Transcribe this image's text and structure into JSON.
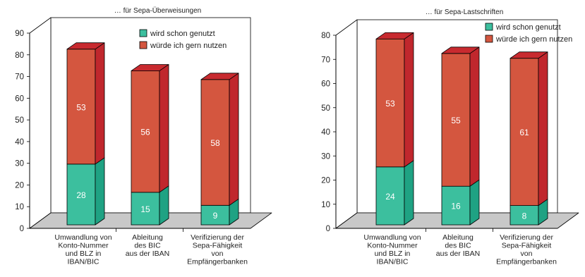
{
  "colors": {
    "used": "#3cbf9e",
    "used_side": "#1fa283",
    "used_top": "#6fdac0",
    "wish": "#d4563f",
    "wish_side": "#c0272d",
    "wish_top": "#c82a2f",
    "floor": "#c8c8c8",
    "axis": "#000000"
  },
  "chart_data": [
    {
      "type": "bar",
      "subtitle": "… für Sepa-Überweisungen",
      "categories": [
        "Umwandlung von|Konto-Nummer|und BLZ in|IBAN/BIC",
        "Ableitung|des BIC|aus der IBAN",
        "Verifizierung der|Sepa-Fähigkeit|von|Empfängerbanken"
      ],
      "series": [
        {
          "name": "wird schon genutzt",
          "values": [
            28,
            15,
            9
          ]
        },
        {
          "name": "würde ich gern nutzen",
          "values": [
            53,
            56,
            58
          ]
        }
      ],
      "ylim": [
        0,
        90
      ],
      "yticks": [
        0,
        10,
        20,
        30,
        40,
        50,
        60,
        70,
        80,
        90
      ],
      "stacked": true,
      "legend": "top-right"
    },
    {
      "type": "bar",
      "subtitle": "… für Sepa-Lastschriften",
      "categories": [
        "Umwandlung von|Konto-Nummer|und BLZ in|IBAN/BIC",
        "Ableitung|des BIC|aus der IBAN",
        "Verifizierung der|Sepa-Fähigkeit|von|Empfängerbanken"
      ],
      "series": [
        {
          "name": "wird schon genutzt",
          "values": [
            24,
            16,
            8
          ]
        },
        {
          "name": "würde ich gern nutzen",
          "values": [
            53,
            55,
            61
          ]
        }
      ],
      "ylim": [
        0,
        80
      ],
      "yticks": [
        0,
        10,
        20,
        30,
        40,
        50,
        60,
        70,
        80
      ],
      "stacked": true,
      "legend": "top-right"
    }
  ]
}
